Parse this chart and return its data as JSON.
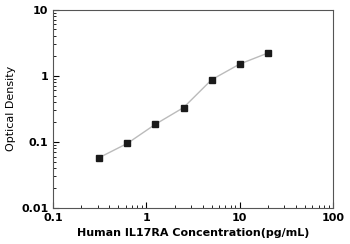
{
  "x_data": [
    0.313,
    0.625,
    1.25,
    2.5,
    5.0,
    10.0,
    20.0
  ],
  "y_data": [
    0.058,
    0.095,
    0.185,
    0.33,
    0.87,
    1.5,
    2.2
  ],
  "xlabel": "Human IL17RA Concentration(pg/mL)",
  "ylabel": "Optical Density",
  "xlim": [
    0.2,
    100
  ],
  "ylim": [
    0.01,
    10
  ],
  "xticks": [
    0.1,
    1,
    10,
    100
  ],
  "yticks": [
    0.01,
    0.1,
    1,
    10
  ],
  "xtick_labels": [
    "0.1",
    "1",
    "10",
    "100"
  ],
  "ytick_labels": [
    "0.01",
    "0.1",
    "1",
    "10"
  ],
  "line_color": "#bbbbbb",
  "marker_color": "#1a1a1a",
  "marker_style": "s",
  "marker_size": 4.5,
  "line_width": 1.0,
  "xlabel_fontsize": 8,
  "ylabel_fontsize": 8,
  "tick_fontsize": 8,
  "background_color": "#ffffff",
  "spine_color": "#555555",
  "xlabel_bold": true,
  "tick_bold": true
}
